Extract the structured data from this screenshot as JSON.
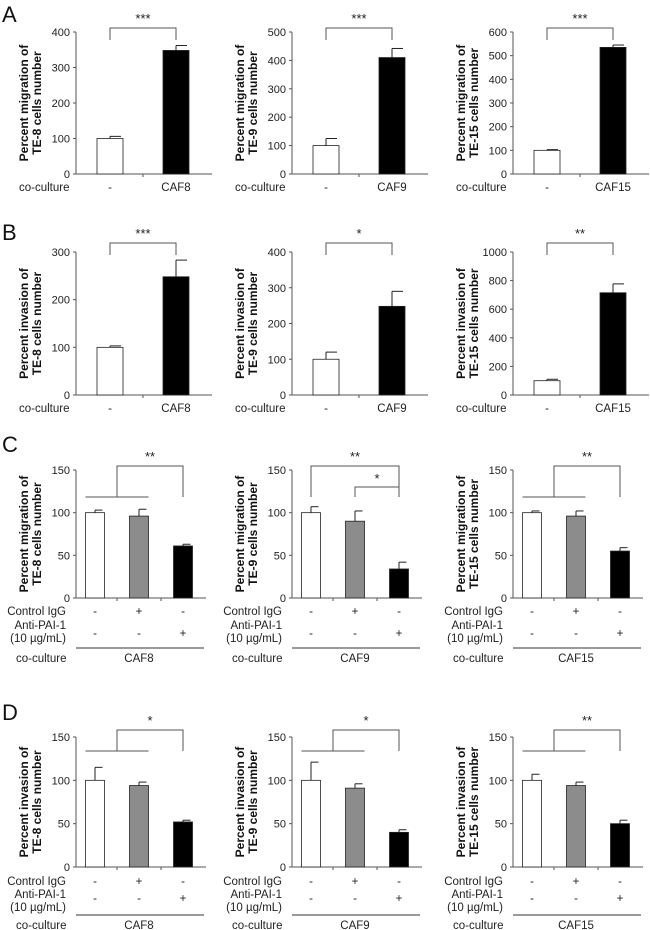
{
  "panels": [
    "A",
    "B",
    "C",
    "D"
  ],
  "colors": {
    "control": "#ffffff",
    "igg": "#8c8c8c",
    "caf": "#000000",
    "axis": "#555555"
  },
  "row_labels": {
    "co_culture": "co-culture",
    "control_igg": "Control IgG",
    "anti_pai1": "Anti-PAI-1",
    "anti_dose": "(10 µg/mL)"
  },
  "chart_data": [
    {
      "type": "bar",
      "panel": "A",
      "ylabel": [
        "Percent migration of",
        "TE-8 cells number"
      ],
      "ylim": [
        0,
        400
      ],
      "yticks": [
        "0",
        "100",
        "200",
        "300",
        "400"
      ],
      "categories": [
        "-",
        "CAF8"
      ],
      "values": [
        100,
        348
      ],
      "errors": [
        6,
        14
      ],
      "fills": [
        "control",
        "caf"
      ],
      "sig": [
        {
          "label": "***",
          "kind": "pair",
          "from": 0,
          "to": 1
        }
      ]
    },
    {
      "type": "bar",
      "panel": "A",
      "ylabel": [
        "Percent migration of",
        "TE-9 cells number"
      ],
      "ylim": [
        0,
        500
      ],
      "yticks": [
        "0",
        "100",
        "200",
        "300",
        "400",
        "500"
      ],
      "categories": [
        "-",
        "CAF9"
      ],
      "values": [
        100,
        410
      ],
      "errors": [
        25,
        32
      ],
      "fills": [
        "control",
        "caf"
      ],
      "sig": [
        {
          "label": "***",
          "kind": "pair",
          "from": 0,
          "to": 1
        }
      ]
    },
    {
      "type": "bar",
      "panel": "A",
      "ylabel": [
        "Percent migration of",
        "TE-15 cells number"
      ],
      "ylim": [
        0,
        600
      ],
      "yticks": [
        "0",
        "100",
        "200",
        "300",
        "400",
        "500",
        "600"
      ],
      "categories": [
        "-",
        "CAF15"
      ],
      "values": [
        100,
        535
      ],
      "errors": [
        3,
        10
      ],
      "fills": [
        "control",
        "caf"
      ],
      "sig": [
        {
          "label": "***",
          "kind": "pair",
          "from": 0,
          "to": 1
        }
      ]
    },
    {
      "type": "bar",
      "panel": "B",
      "ylabel": [
        "Percent invasion of",
        "TE-8 cells number"
      ],
      "ylim": [
        0,
        300
      ],
      "yticks": [
        "0",
        "100",
        "200",
        "300"
      ],
      "categories": [
        "-",
        "CAF8"
      ],
      "values": [
        100,
        248
      ],
      "errors": [
        3,
        35
      ],
      "fills": [
        "control",
        "caf"
      ],
      "sig": [
        {
          "label": "***",
          "kind": "pair",
          "from": 0,
          "to": 1
        }
      ]
    },
    {
      "type": "bar",
      "panel": "B",
      "ylabel": [
        "Percent invasion of",
        "TE-9 cells number"
      ],
      "ylim": [
        0,
        400
      ],
      "yticks": [
        "0",
        "100",
        "200",
        "300",
        "400"
      ],
      "categories": [
        "-",
        "CAF9"
      ],
      "values": [
        100,
        248
      ],
      "errors": [
        20,
        42
      ],
      "fills": [
        "control",
        "caf"
      ],
      "sig": [
        {
          "label": "*",
          "kind": "pair",
          "from": 0,
          "to": 1
        }
      ]
    },
    {
      "type": "bar",
      "panel": "B",
      "ylabel": [
        "Percent invasion of",
        "TE-15 cells number"
      ],
      "ylim": [
        0,
        1000
      ],
      "yticks": [
        "0",
        "200",
        "400",
        "600",
        "800",
        "1000"
      ],
      "categories": [
        "-",
        "CAF15"
      ],
      "values": [
        100,
        715
      ],
      "errors": [
        10,
        62
      ],
      "fills": [
        "control",
        "caf"
      ],
      "sig": [
        {
          "label": "**",
          "kind": "pair",
          "from": 0,
          "to": 1
        }
      ]
    },
    {
      "type": "bar",
      "panel": "C",
      "ylabel": [
        "Percent migration of",
        "TE-8 cells number"
      ],
      "ylim": [
        0,
        150
      ],
      "yticks": [
        "0",
        "50",
        "100",
        "150"
      ],
      "control_igg": [
        "-",
        "+",
        "-"
      ],
      "anti_pai1": [
        "-",
        "-",
        "+"
      ],
      "co_culture": "CAF8",
      "values": [
        100,
        96,
        61
      ],
      "errors": [
        3,
        8,
        2
      ],
      "fills": [
        "control",
        "igg",
        "caf"
      ],
      "sig": [
        {
          "label": "**",
          "kind": "group"
        }
      ]
    },
    {
      "type": "bar",
      "panel": "C",
      "ylabel": [
        "Percent migration of",
        "TE-9 cells number"
      ],
      "ylim": [
        0,
        150
      ],
      "yticks": [
        "0",
        "50",
        "100",
        "150"
      ],
      "control_igg": [
        "-",
        "+",
        "-"
      ],
      "anti_pai1": [
        "-",
        "-",
        "+"
      ],
      "co_culture": "CAF9",
      "values": [
        100,
        90,
        34
      ],
      "errors": [
        7,
        12,
        8
      ],
      "fills": [
        "control",
        "igg",
        "caf"
      ],
      "sig": [
        {
          "label": "**",
          "kind": "pair",
          "from": 0,
          "to": 2
        },
        {
          "label": "*",
          "kind": "inner",
          "from": 1,
          "to": 2
        }
      ]
    },
    {
      "type": "bar",
      "panel": "C",
      "ylabel": [
        "Percent migration of",
        "TE-15 cells number"
      ],
      "ylim": [
        0,
        150
      ],
      "yticks": [
        "0",
        "50",
        "100",
        "150"
      ],
      "control_igg": [
        "-",
        "+",
        "-"
      ],
      "anti_pai1": [
        "-",
        "-",
        "+"
      ],
      "co_culture": "CAF15",
      "values": [
        100,
        96,
        55
      ],
      "errors": [
        2,
        6,
        4
      ],
      "fills": [
        "control",
        "igg",
        "caf"
      ],
      "sig": [
        {
          "label": "**",
          "kind": "group"
        }
      ]
    },
    {
      "type": "bar",
      "panel": "D",
      "ylabel": [
        "Percent invasion of",
        "TE-8 cells number"
      ],
      "ylim": [
        0,
        150
      ],
      "yticks": [
        "0",
        "50",
        "100",
        "150"
      ],
      "control_igg": [
        "-",
        "+",
        "-"
      ],
      "anti_pai1": [
        "-",
        "-",
        "+"
      ],
      "co_culture": "CAF8",
      "values": [
        100,
        94,
        52
      ],
      "errors": [
        15,
        4,
        2
      ],
      "fills": [
        "control",
        "igg",
        "caf"
      ],
      "sig": [
        {
          "label": "*",
          "kind": "group"
        }
      ]
    },
    {
      "type": "bar",
      "panel": "D",
      "ylabel": [
        "Percent invasion of",
        "TE-9 cells number"
      ],
      "ylim": [
        0,
        150
      ],
      "yticks": [
        "0",
        "50",
        "100",
        "150"
      ],
      "control_igg": [
        "-",
        "+",
        "-"
      ],
      "anti_pai1": [
        "-",
        "-",
        "+"
      ],
      "co_culture": "CAF9",
      "values": [
        100,
        91,
        40
      ],
      "errors": [
        21,
        5,
        3
      ],
      "fills": [
        "control",
        "igg",
        "caf"
      ],
      "sig": [
        {
          "label": "*",
          "kind": "group"
        }
      ]
    },
    {
      "type": "bar",
      "panel": "D",
      "ylabel": [
        "Percent invasion of",
        "TE-15 cells number"
      ],
      "ylim": [
        0,
        150
      ],
      "yticks": [
        "0",
        "50",
        "100",
        "150"
      ],
      "control_igg": [
        "-",
        "+",
        "-"
      ],
      "anti_pai1": [
        "-",
        "-",
        "+"
      ],
      "co_culture": "CAF15",
      "values": [
        100,
        94,
        50
      ],
      "errors": [
        7,
        4,
        4
      ],
      "fills": [
        "control",
        "igg",
        "caf"
      ],
      "sig": [
        {
          "label": "**",
          "kind": "group"
        }
      ]
    }
  ]
}
